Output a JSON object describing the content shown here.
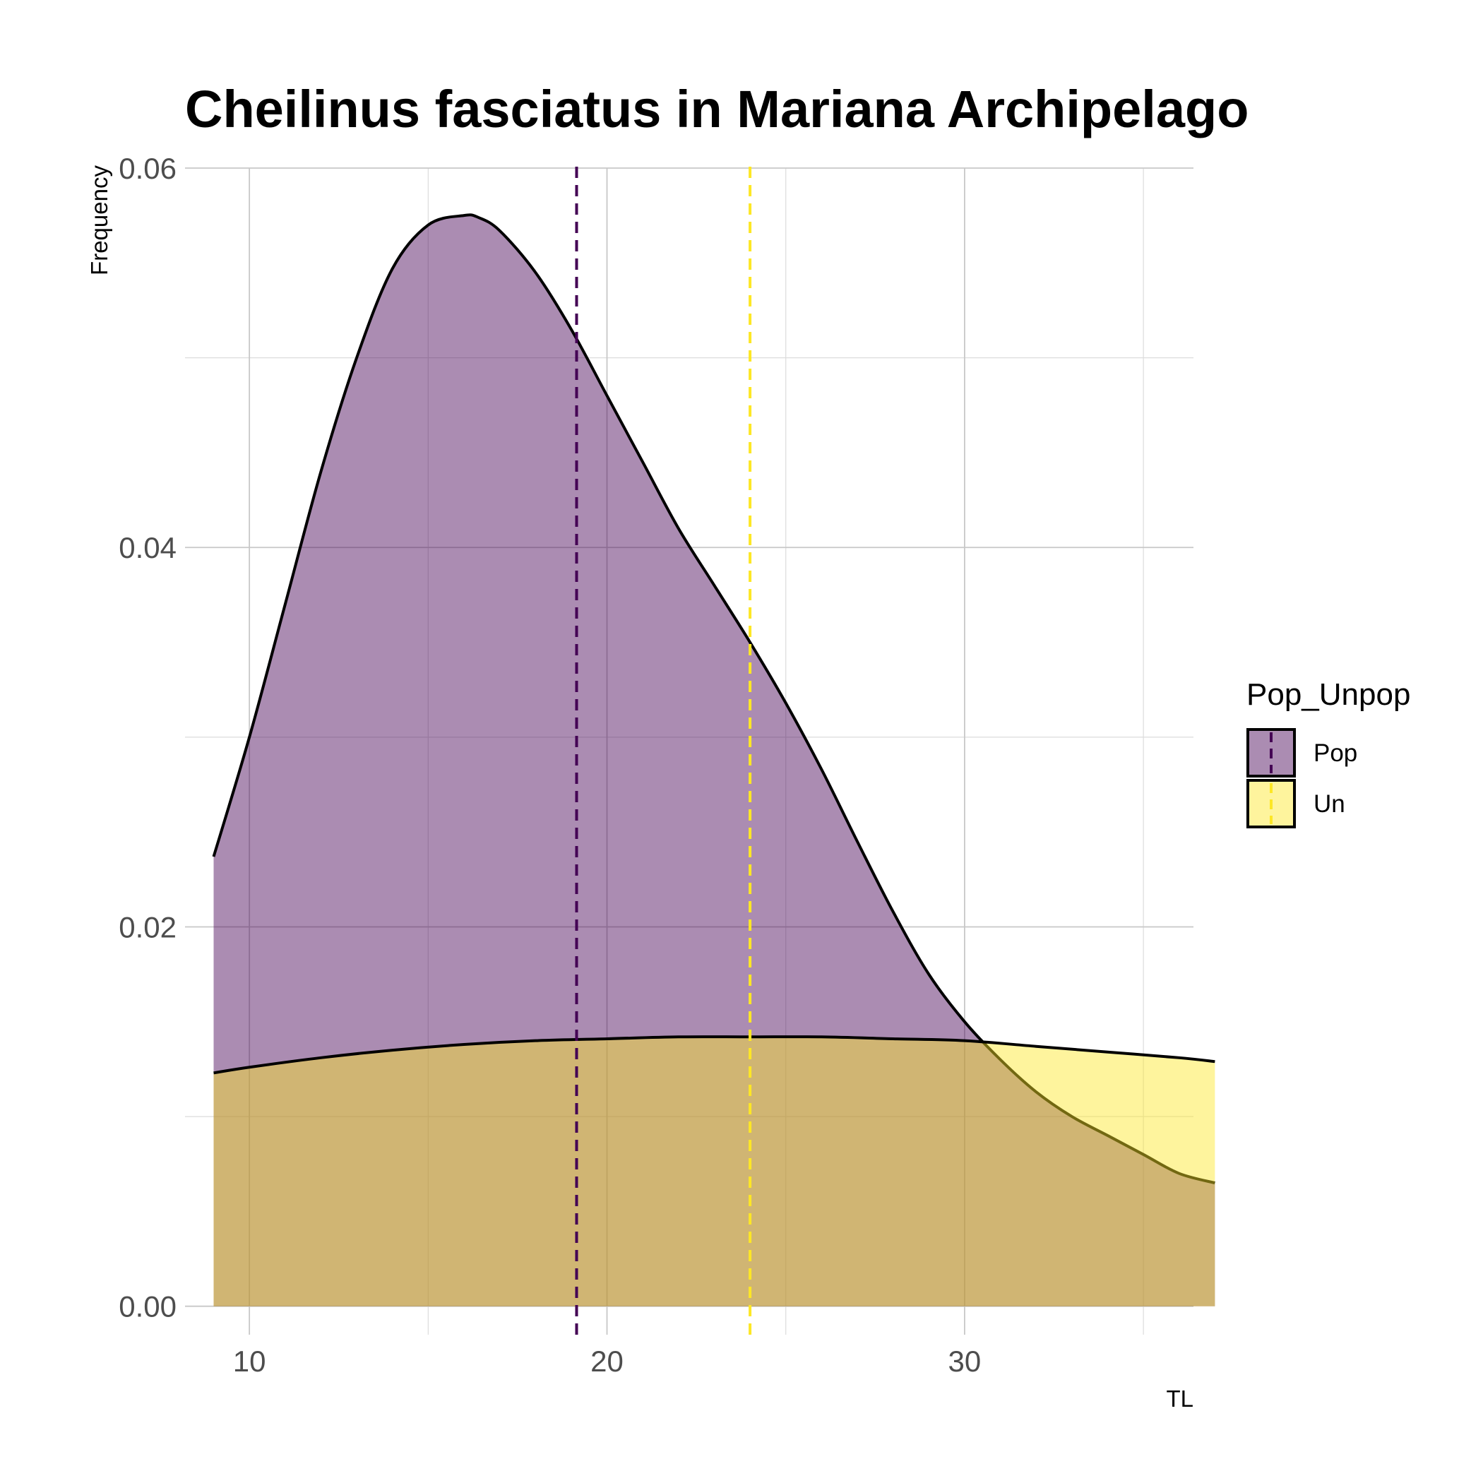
{
  "chart_data": {
    "type": "area",
    "title": "Cheilinus fasciatus in Mariana Archipelago",
    "xlabel": "TL",
    "ylabel": "Frequency",
    "xlim": [
      8.2,
      36.4
    ],
    "ylim": [
      -0.0015,
      0.06
    ],
    "x_ticks": [
      10,
      20,
      30
    ],
    "x_tick_labels": [
      "10",
      "20",
      "30"
    ],
    "y_ticks": [
      0,
      0.02,
      0.04,
      0.06
    ],
    "y_tick_labels": [
      "0.00",
      "0.02",
      "0.04",
      "0.06"
    ],
    "grid": true,
    "legend": {
      "title": "Pop_Unpop",
      "position": "right"
    },
    "series": [
      {
        "name": "Pop",
        "fill_color": "#440154",
        "fill_opacity": 0.45,
        "mean_line_x": 19.15,
        "mean_line_color": "#440154",
        "x": [
          9,
          10,
          11,
          12,
          13,
          14,
          15,
          16,
          16.4,
          17,
          18,
          19,
          20,
          21,
          22,
          23,
          24,
          25,
          26,
          27,
          28,
          29,
          30,
          31,
          32,
          33,
          34,
          35,
          36,
          37
        ],
        "y": [
          0.0237,
          0.03,
          0.037,
          0.044,
          0.05,
          0.0547,
          0.057,
          0.0575,
          0.0574,
          0.0567,
          0.0545,
          0.0515,
          0.048,
          0.0445,
          0.041,
          0.038,
          0.035,
          0.0318,
          0.0283,
          0.0245,
          0.0208,
          0.0175,
          0.015,
          0.013,
          0.0113,
          0.01,
          0.009,
          0.008,
          0.007,
          0.0065
        ]
      },
      {
        "name": "Un",
        "fill_color": "#fde725",
        "fill_opacity": 0.45,
        "mean_line_x": 24,
        "mean_line_color": "#fde725",
        "x": [
          9,
          10,
          12,
          14,
          16,
          18,
          20,
          22,
          24,
          26,
          28,
          30,
          32,
          34,
          36,
          37
        ],
        "y": [
          0.0123,
          0.0126,
          0.0131,
          0.0135,
          0.0138,
          0.014,
          0.0141,
          0.0142,
          0.0142,
          0.0142,
          0.0141,
          0.014,
          0.0137,
          0.0134,
          0.0131,
          0.0129
        ]
      }
    ]
  }
}
